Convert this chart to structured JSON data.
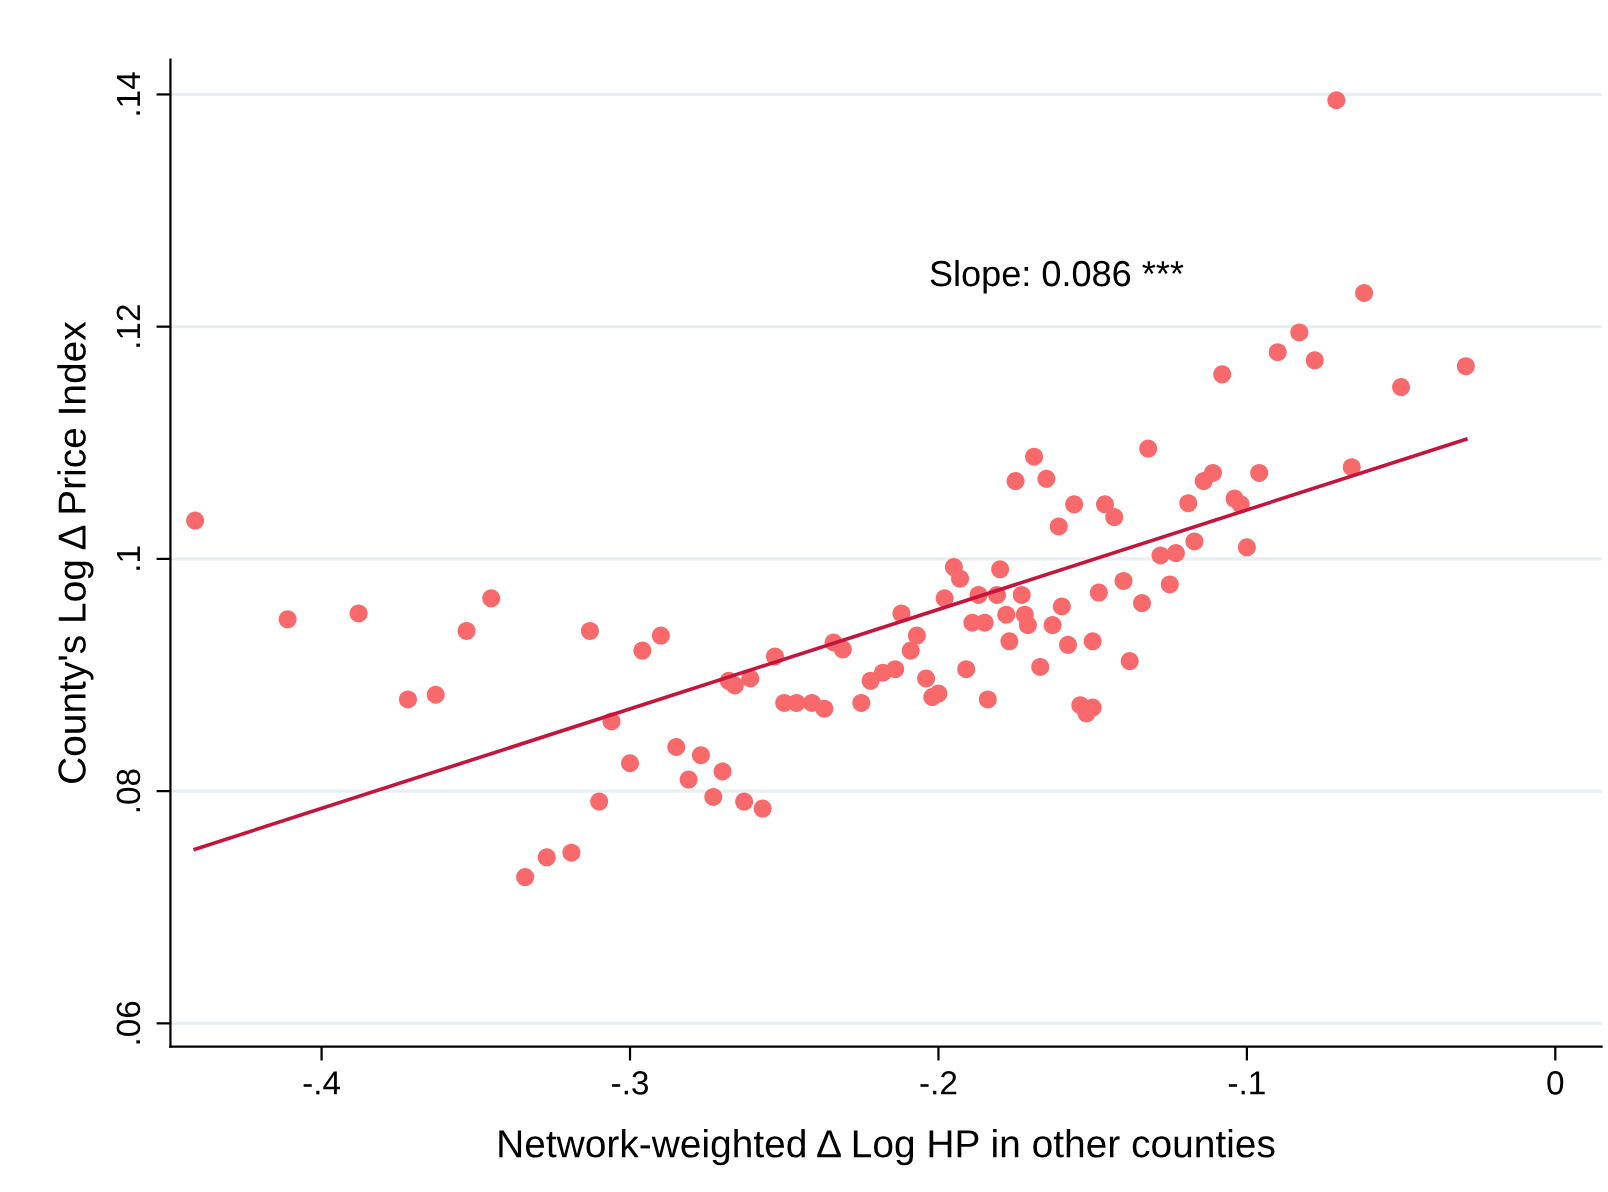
{
  "chart_data": {
    "type": "scatter",
    "xlabel": "Network-weighted Δ Log HP in other counties",
    "ylabel": "County's Log Δ Price Index",
    "annotations": [
      "Slope: 0.086 ***"
    ],
    "xlim": [
      -0.449,
      0.015
    ],
    "ylim": [
      0.058,
      0.143
    ],
    "xticks": [
      {
        "value": -0.4,
        "label": "-.4"
      },
      {
        "value": -0.3,
        "label": "-.3"
      },
      {
        "value": -0.2,
        "label": "-.2"
      },
      {
        "value": -0.1,
        "label": "-.1"
      },
      0
    ],
    "yticks": [
      {
        "value": 0.06,
        "label": ".06"
      },
      {
        "value": 0.08,
        "label": ".08"
      },
      {
        "value": 0.1,
        "label": ".1"
      },
      {
        "value": 0.12,
        "label": ".12"
      },
      {
        "value": 0.14,
        "label": ".14"
      }
    ],
    "grid": "y",
    "legend": false,
    "series": [
      {
        "marker": "circle",
        "color": "#f8696b",
        "x": [
          -0.441,
          -0.411,
          -0.388,
          -0.372,
          -0.363,
          -0.353,
          -0.345,
          -0.334,
          -0.327,
          -0.319,
          -0.313,
          -0.31,
          -0.306,
          -0.3,
          -0.296,
          -0.29,
          -0.285,
          -0.281,
          -0.277,
          -0.273,
          -0.27,
          -0.268,
          -0.266,
          -0.263,
          -0.261,
          -0.257,
          -0.253,
          -0.25,
          -0.246,
          -0.241,
          -0.237,
          -0.234,
          -0.231,
          -0.225,
          -0.222,
          -0.218,
          -0.214,
          -0.212,
          -0.209,
          -0.207,
          -0.204,
          -0.202,
          -0.2,
          -0.198,
          -0.195,
          -0.193,
          -0.191,
          -0.189,
          -0.187,
          -0.185,
          -0.184,
          -0.181,
          -0.18,
          -0.178,
          -0.177,
          -0.175,
          -0.173,
          -0.172,
          -0.171,
          -0.169,
          -0.167,
          -0.165,
          -0.163,
          -0.161,
          -0.16,
          -0.158,
          -0.156,
          -0.154,
          -0.152,
          -0.15,
          -0.15,
          -0.148,
          -0.146,
          -0.143,
          -0.14,
          -0.138,
          -0.134,
          -0.132,
          -0.128,
          -0.125,
          -0.123,
          -0.119,
          -0.117,
          -0.114,
          -0.111,
          -0.108,
          -0.104,
          -0.102,
          -0.1,
          -0.096,
          -0.09,
          -0.083,
          -0.078,
          -0.071,
          -0.066,
          -0.062,
          -0.05,
          -0.029
        ],
        "values": [
          0.1033,
          0.0948,
          0.0953,
          0.0879,
          0.0883,
          0.0938,
          0.0966,
          0.0726,
          0.0743,
          0.0747,
          0.0938,
          0.0791,
          0.086,
          0.0824,
          0.0921,
          0.0934,
          0.0838,
          0.081,
          0.0831,
          0.0795,
          0.0817,
          0.0895,
          0.0891,
          0.0791,
          0.0897,
          0.0785,
          0.0916,
          0.0876,
          0.0876,
          0.0876,
          0.0871,
          0.0928,
          0.0922,
          0.0876,
          0.0895,
          0.0902,
          0.0905,
          0.0953,
          0.0921,
          0.0934,
          0.0897,
          0.0881,
          0.0884,
          0.0966,
          0.0993,
          0.0983,
          0.0905,
          0.0945,
          0.0969,
          0.0945,
          0.0879,
          0.0969,
          0.0991,
          0.0952,
          0.0929,
          0.1067,
          0.0969,
          0.0952,
          0.0943,
          0.1088,
          0.0907,
          0.1069,
          0.0943,
          0.1028,
          0.0959,
          0.0926,
          0.1047,
          0.0874,
          0.0867,
          0.0872,
          0.0929,
          0.0971,
          0.1047,
          0.1036,
          0.0981,
          0.0912,
          0.0962,
          0.1095,
          0.1003,
          0.0978,
          0.1005,
          0.1048,
          0.1015,
          0.1067,
          0.1074,
          0.1159,
          0.1052,
          0.1047,
          0.101,
          0.1074,
          0.1178,
          0.1195,
          0.1171,
          0.1395,
          0.1079,
          0.1229,
          0.1148,
          0.1166
        ]
      },
      {
        "type": "line",
        "marker": "none",
        "color": "#c4163c",
        "x": [
          -0.441,
          -0.029
        ],
        "values": [
          0.075,
          0.1103
        ]
      }
    ]
  }
}
